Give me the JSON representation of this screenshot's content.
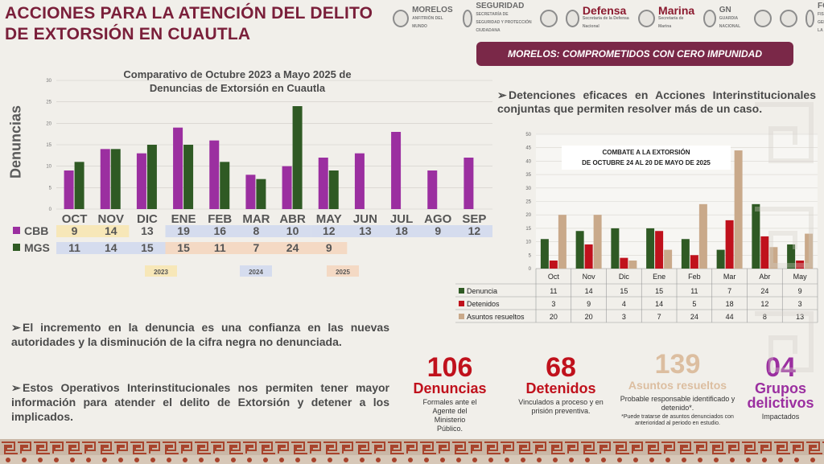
{
  "header": {
    "title": "ACCIONES PARA LA ATENCIÓN DEL DELITO DE EXTORSIÓN EN CUAUTLA",
    "logos": [
      {
        "label": "MORELOS",
        "sub": "ANFITRIÓN DEL MUNDO",
        "icon": "morelos-seal-icon"
      },
      {
        "label": "SEGURIDAD",
        "sub": "SECRETARÍA DE SEGURIDAD Y PROTECCIÓN CIUDADANA",
        "icon": "seguridad-seal-icon"
      },
      {
        "label": "",
        "sub": "",
        "icon": "police-badge-icon"
      },
      {
        "label": "Defensa",
        "sub": "Secretaría de la Defensa Nacional",
        "icon": "defensa-seal-icon"
      },
      {
        "label": "Marina",
        "sub": "Secretaría de Marina",
        "icon": "marina-seal-icon"
      },
      {
        "label": "GN",
        "sub": "GUARDIA NACIONAL",
        "icon": "gn-seal-icon"
      },
      {
        "label": "",
        "sub": "",
        "icon": "seal-icon"
      },
      {
        "label": "",
        "sub": "",
        "icon": "police-shield-icon"
      },
      {
        "label": "FGR",
        "sub": "FISCALÍA GENERAL DE LA REPÚBLICA",
        "icon": "fgr-seal-icon"
      }
    ]
  },
  "banner": "MORELOS: COMPROMETIDOS CON CERO IMPUNIDAD",
  "colors": {
    "cbb": "#9b2fa0",
    "mgs": "#2f5a24",
    "rojo": "#c0111c",
    "beige": "#c9a98a",
    "guinda": "#7a1f3a"
  },
  "chart_data": [
    {
      "type": "bar",
      "title": "Comparativo  de Octubre 2023 a Mayo 2025 de Denuncias de Extorsión en Cuautla",
      "ylabel": "Denuncias",
      "ylim": [
        0,
        30
      ],
      "yticks": [
        0,
        5,
        10,
        15,
        20,
        25,
        30
      ],
      "categories": [
        "OCT",
        "NOV",
        "DIC",
        "ENE",
        "FEB",
        "MAR",
        "ABR",
        "MAY",
        "JUN",
        "JUL",
        "AGO",
        "SEP"
      ],
      "series": [
        {
          "name": "CBB",
          "values": [
            9,
            14,
            13,
            19,
            16,
            8,
            10,
            12,
            13,
            18,
            9,
            12
          ]
        },
        {
          "name": "MGS",
          "values": [
            11,
            14,
            15,
            15,
            11,
            7,
            24,
            9,
            null,
            null,
            null,
            null
          ]
        }
      ],
      "years": [
        "2023",
        "2024",
        "2025"
      ]
    },
    {
      "type": "bar",
      "title": "COMBATE A LA EXTORSIÓN DE OCTUBRE 24 AL 20 DE MAYO DE 2025",
      "ylim": [
        0,
        50
      ],
      "yticks": [
        0,
        5,
        10,
        15,
        20,
        25,
        30,
        35,
        40,
        45,
        50
      ],
      "categories": [
        "Oct",
        "Nov",
        "Dic",
        "Ene",
        "Feb",
        "Mar",
        "Abr",
        "May"
      ],
      "series": [
        {
          "name": "Denuncia",
          "values": [
            11,
            14,
            15,
            15,
            11,
            7,
            24,
            9
          ]
        },
        {
          "name": "Detenidos",
          "values": [
            3,
            9,
            4,
            14,
            5,
            18,
            12,
            3
          ]
        },
        {
          "name": "Asuntos resueltos",
          "values": [
            20,
            20,
            3,
            7,
            24,
            44,
            8,
            13
          ]
        }
      ]
    }
  ],
  "right_text": "Detenciones eficaces en Acciones Interinstitucionales conjuntas que permiten resolver más de un caso.",
  "bullets": [
    "El incremento en la denuncia es una confianza en las nuevas autoridades y la disminución de la cifra negra no denunciada.",
    "Estos Operativos Interinstitucionales nos permiten tener mayor información para atender el delito de Extorsión y detener a los implicados."
  ],
  "kpis": [
    {
      "num": "106",
      "label": "Denuncias",
      "desc": "Formales ante el Agente del Ministerio Público.",
      "note": ""
    },
    {
      "num": "68",
      "label": "Detenidos",
      "desc": "Vinculados a proceso y en prisión preventiva.",
      "note": ""
    },
    {
      "num": "139",
      "label": "Asuntos resueltos",
      "desc": "Probable responsable identificado y detenido*.",
      "note": "*Puede tratarse de asuntos denunciados con anterioridad al periodo en estudio."
    },
    {
      "num": "04",
      "label": "Grupos delictivos",
      "desc": "Impactados",
      "note": ""
    }
  ]
}
